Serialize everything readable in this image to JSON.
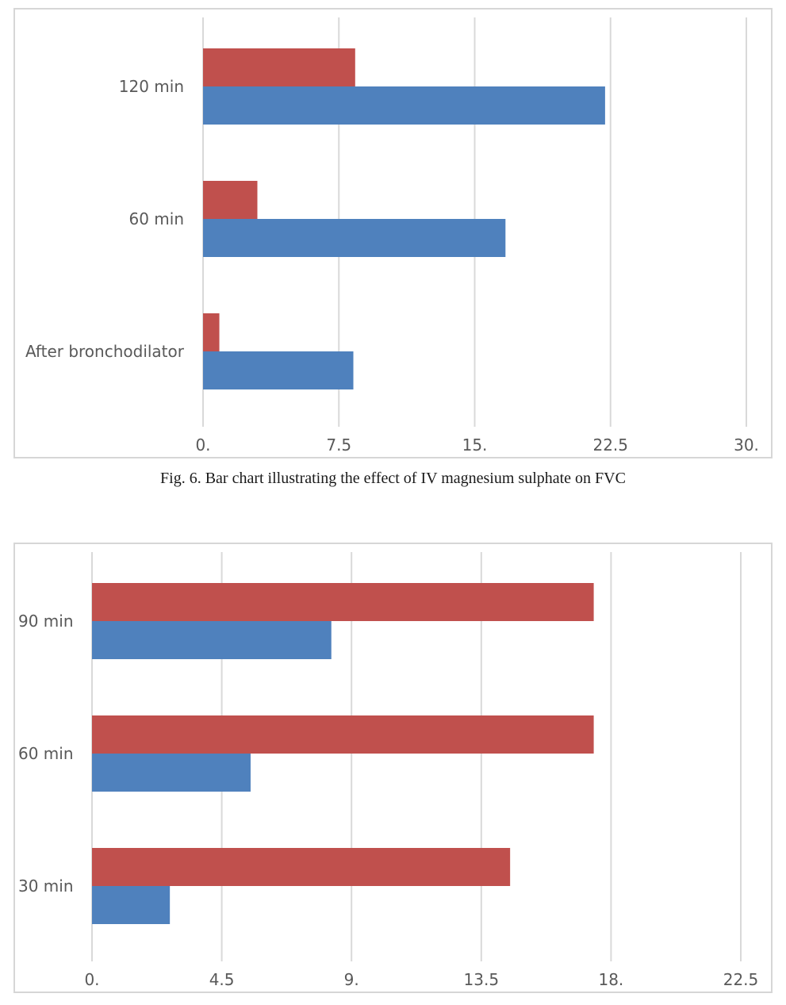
{
  "caption": "Fig. 6. Bar chart illustrating the effect of IV magnesium sulphate on FVC",
  "colors": {
    "series_red": "#c0504d",
    "series_blue": "#4f81bd",
    "grid": "#d9d9d9",
    "frame": "#d6d6d6",
    "text": "#595959"
  },
  "chart_data": [
    {
      "type": "bar",
      "orientation": "horizontal",
      "categories": [
        "120 min",
        "60 min",
        "After bronchodilator"
      ],
      "series": [
        {
          "color": "#c0504d",
          "values": [
            8.4,
            3.0,
            0.9
          ]
        },
        {
          "color": "#4f81bd",
          "values": [
            22.2,
            16.7,
            8.3
          ]
        }
      ],
      "xlim": [
        0,
        30
      ],
      "ticks": [
        0,
        7.5,
        15,
        22.5,
        30
      ],
      "tick_labels": [
        "0.",
        "7.5",
        "15.",
        "22.5",
        "30."
      ],
      "grid": "vertical"
    },
    {
      "type": "bar",
      "orientation": "horizontal",
      "categories": [
        "90 min",
        "60 min",
        "30 min"
      ],
      "series": [
        {
          "color": "#c0504d",
          "values": [
            17.4,
            17.4,
            14.5
          ]
        },
        {
          "color": "#4f81bd",
          "values": [
            8.3,
            5.5,
            2.7
          ]
        }
      ],
      "xlim": [
        0,
        22.5
      ],
      "ticks": [
        0,
        4.5,
        9,
        13.5,
        18,
        22.5
      ],
      "tick_labels": [
        "0.",
        "4.5",
        "9.",
        "13.5",
        "18.",
        "22.5"
      ],
      "grid": "vertical"
    }
  ]
}
